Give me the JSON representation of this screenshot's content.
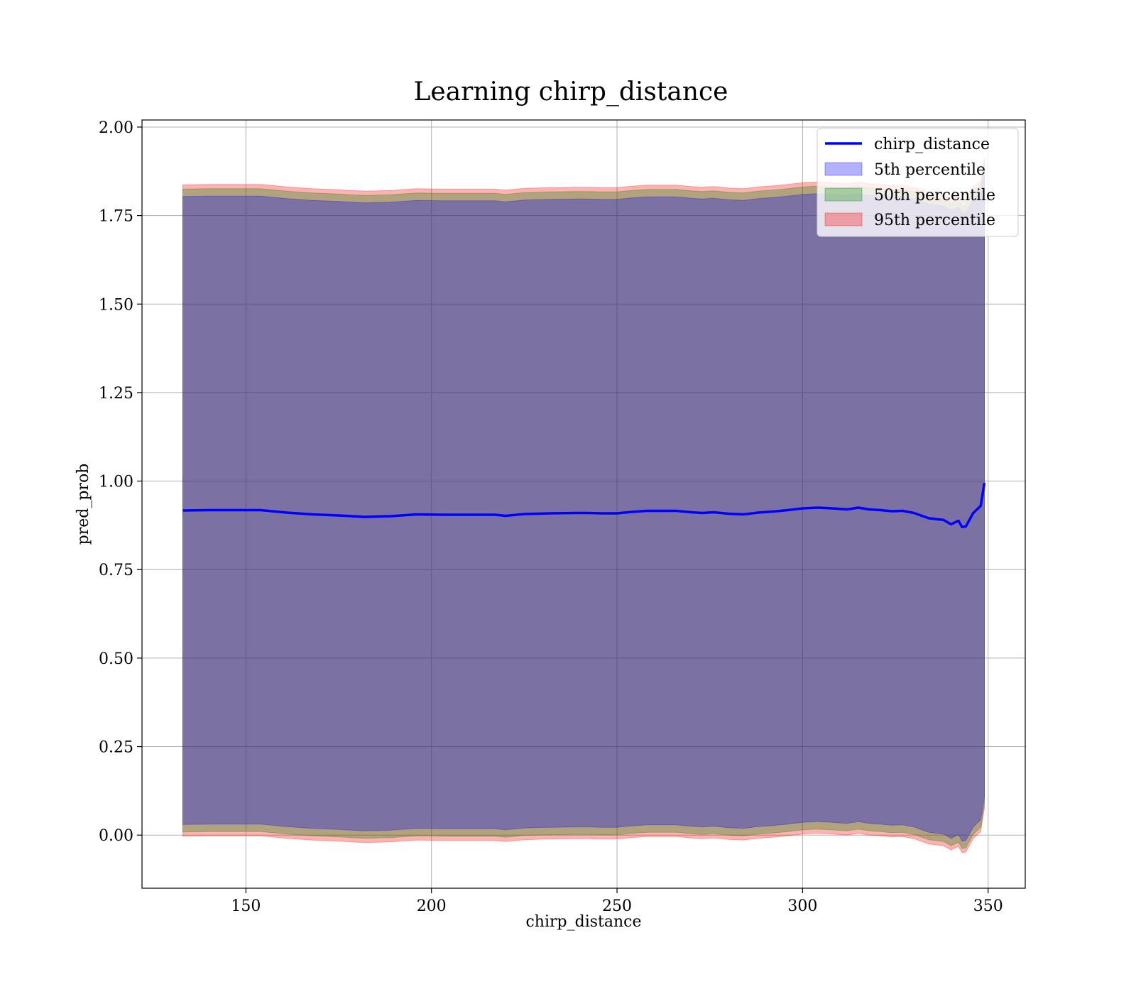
{
  "chart_data": {
    "type": "line",
    "title": "Learning chirp_distance",
    "xlabel": "chirp_distance",
    "ylabel": "pred_prob",
    "xlim": [
      122,
      360
    ],
    "ylim": [
      -0.15,
      2.02
    ],
    "xticks": [
      150,
      200,
      250,
      300,
      350
    ],
    "xtick_labels": [
      "150",
      "200",
      "250",
      "300",
      "350"
    ],
    "yticks": [
      0.0,
      0.25,
      0.5,
      0.75,
      1.0,
      1.25,
      1.5,
      1.75,
      2.0
    ],
    "ytick_labels": [
      "0.00",
      "0.25",
      "0.50",
      "0.75",
      "1.00",
      "1.25",
      "1.50",
      "1.75",
      "2.00"
    ],
    "grid": true,
    "legend_position": "top-right",
    "legend": [
      "chirp_distance",
      "5th percentile",
      "50th percentile",
      "95th percentile"
    ],
    "colors": {
      "line": "#0000ff",
      "band_5th": "#0000ff",
      "band_50th": "#008000",
      "band_95th": "#ff0000"
    },
    "x": [
      133,
      140,
      147,
      154,
      161,
      168,
      175,
      182,
      189,
      196,
      203,
      210,
      217,
      220,
      225,
      232,
      239,
      242,
      246,
      250,
      254,
      258,
      262,
      266,
      270,
      273,
      276,
      280,
      284,
      288,
      292,
      296,
      300,
      304,
      308,
      312,
      315,
      318,
      321,
      324,
      327,
      330,
      334,
      338,
      340,
      342,
      343,
      344,
      346,
      348,
      349
    ],
    "series": [
      {
        "name": "chirp_distance",
        "type": "line",
        "values": [
          0.917,
          0.918,
          0.918,
          0.918,
          0.911,
          0.906,
          0.903,
          0.899,
          0.901,
          0.906,
          0.905,
          0.905,
          0.905,
          0.902,
          0.907,
          0.909,
          0.91,
          0.91,
          0.909,
          0.909,
          0.913,
          0.916,
          0.916,
          0.916,
          0.912,
          0.91,
          0.912,
          0.908,
          0.906,
          0.911,
          0.914,
          0.918,
          0.923,
          0.925,
          0.923,
          0.92,
          0.925,
          0.92,
          0.918,
          0.915,
          0.916,
          0.91,
          0.895,
          0.89,
          0.878,
          0.888,
          0.87,
          0.872,
          0.91,
          0.93,
          0.995
        ]
      },
      {
        "name": "5th percentile",
        "type": "band",
        "lower": [
          0.03,
          0.031,
          0.031,
          0.031,
          0.024,
          0.019,
          0.016,
          0.012,
          0.014,
          0.019,
          0.018,
          0.018,
          0.018,
          0.015,
          0.02,
          0.022,
          0.023,
          0.023,
          0.022,
          0.022,
          0.026,
          0.029,
          0.029,
          0.029,
          0.025,
          0.023,
          0.025,
          0.021,
          0.019,
          0.024,
          0.027,
          0.031,
          0.036,
          0.038,
          0.036,
          0.033,
          0.038,
          0.033,
          0.031,
          0.028,
          0.029,
          0.023,
          0.008,
          0.003,
          -0.009,
          0.001,
          -0.017,
          -0.015,
          0.023,
          0.043,
          0.108
        ],
        "upper": [
          1.804,
          1.805,
          1.805,
          1.805,
          1.798,
          1.793,
          1.79,
          1.786,
          1.788,
          1.793,
          1.792,
          1.792,
          1.792,
          1.789,
          1.794,
          1.796,
          1.797,
          1.797,
          1.796,
          1.796,
          1.8,
          1.803,
          1.803,
          1.803,
          1.799,
          1.797,
          1.799,
          1.795,
          1.793,
          1.798,
          1.801,
          1.805,
          1.81,
          1.812,
          1.81,
          1.807,
          1.812,
          1.807,
          1.805,
          1.802,
          1.803,
          1.797,
          1.782,
          1.777,
          1.765,
          1.775,
          1.757,
          1.759,
          1.797,
          1.817,
          1.882
        ]
      },
      {
        "name": "50th percentile",
        "type": "band",
        "lower": [
          0.009,
          0.01,
          0.01,
          0.01,
          0.003,
          -0.002,
          -0.005,
          -0.009,
          -0.007,
          -0.002,
          -0.003,
          -0.003,
          -0.003,
          -0.006,
          -0.001,
          0.001,
          0.002,
          0.002,
          0.001,
          0.001,
          0.005,
          0.008,
          0.008,
          0.008,
          0.004,
          0.002,
          0.004,
          0.0,
          -0.002,
          0.003,
          0.006,
          0.01,
          0.015,
          0.017,
          0.015,
          0.012,
          0.017,
          0.012,
          0.01,
          0.007,
          0.008,
          0.002,
          -0.013,
          -0.018,
          -0.03,
          -0.02,
          -0.038,
          -0.036,
          0.002,
          0.022,
          0.087
        ],
        "upper": [
          1.825,
          1.826,
          1.826,
          1.826,
          1.819,
          1.814,
          1.811,
          1.807,
          1.809,
          1.814,
          1.813,
          1.813,
          1.813,
          1.81,
          1.815,
          1.817,
          1.818,
          1.818,
          1.817,
          1.817,
          1.821,
          1.824,
          1.824,
          1.824,
          1.82,
          1.818,
          1.82,
          1.816,
          1.814,
          1.819,
          1.822,
          1.826,
          1.831,
          1.833,
          1.831,
          1.828,
          1.833,
          1.828,
          1.826,
          1.823,
          1.824,
          1.818,
          1.803,
          1.798,
          1.786,
          1.796,
          1.778,
          1.78,
          1.818,
          1.838,
          1.903
        ]
      },
      {
        "name": "95th percentile",
        "type": "band",
        "lower": [
          -0.003,
          -0.002,
          -0.002,
          -0.002,
          -0.009,
          -0.014,
          -0.017,
          -0.021,
          -0.019,
          -0.014,
          -0.015,
          -0.015,
          -0.015,
          -0.018,
          -0.013,
          -0.011,
          -0.01,
          -0.01,
          -0.011,
          -0.011,
          -0.007,
          -0.004,
          -0.004,
          -0.004,
          -0.008,
          -0.01,
          -0.008,
          -0.012,
          -0.014,
          -0.009,
          -0.006,
          -0.002,
          0.003,
          0.005,
          0.003,
          0.0,
          0.005,
          0.0,
          -0.002,
          -0.005,
          -0.004,
          -0.01,
          -0.025,
          -0.03,
          -0.042,
          -0.032,
          -0.05,
          -0.048,
          -0.01,
          0.01,
          0.075
        ],
        "upper": [
          1.837,
          1.838,
          1.838,
          1.838,
          1.831,
          1.826,
          1.823,
          1.819,
          1.821,
          1.826,
          1.825,
          1.825,
          1.825,
          1.822,
          1.827,
          1.829,
          1.83,
          1.83,
          1.829,
          1.829,
          1.833,
          1.836,
          1.836,
          1.836,
          1.832,
          1.83,
          1.832,
          1.828,
          1.826,
          1.831,
          1.834,
          1.838,
          1.843,
          1.845,
          1.843,
          1.84,
          1.845,
          1.84,
          1.838,
          1.835,
          1.836,
          1.83,
          1.815,
          1.81,
          1.798,
          1.808,
          1.79,
          1.792,
          1.83,
          1.85,
          1.915
        ]
      }
    ]
  }
}
